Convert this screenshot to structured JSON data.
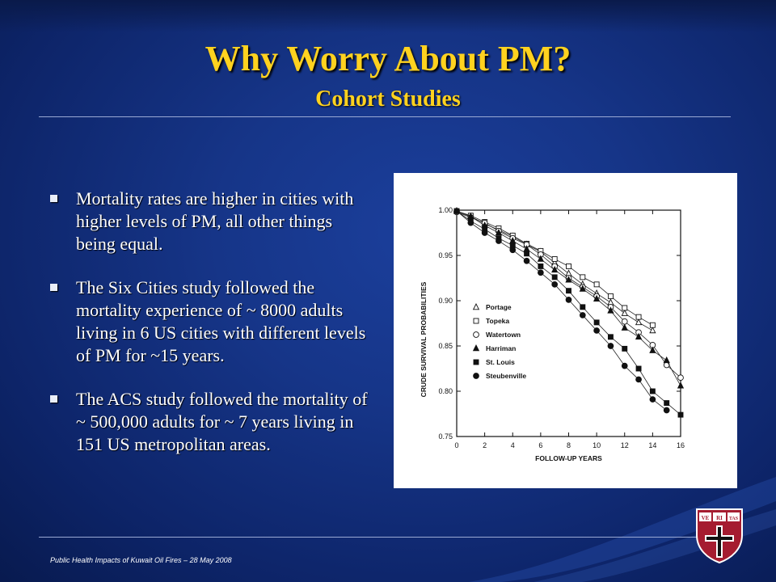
{
  "slide": {
    "title": "Why Worry About PM?",
    "subtitle": "Cohort Studies",
    "footer": "Public Health Impacts of Kuwait Oil Fires – 28 May 2008",
    "logo_text": [
      "VE",
      "RI",
      "TAS"
    ]
  },
  "bullets": [
    "Mortality rates are higher in cities with higher levels of PM, all other things being equal.",
    "The Six Cities study followed the mortality experience of ~ 8000 adults living in 6 US cities with different levels of PM  for ~15 years.",
    "The ACS study followed the mortality of ~ 500,000 adults  for ~ 7 years living in 151 US metropolitan areas."
  ],
  "colors": {
    "title": "#ffd21f",
    "background": "#163588",
    "text": "#ffffff"
  },
  "chart_data": {
    "type": "line",
    "title": "",
    "xlabel": "FOLLOW-UP YEARS",
    "ylabel": "CRUDE SURVIVAL PROBABILITIES",
    "xlim": [
      0,
      16
    ],
    "ylim": [
      0.75,
      1.0
    ],
    "xticks": [
      "0",
      "2",
      "4",
      "6",
      "8",
      "10",
      "12",
      "14",
      "16"
    ],
    "yticks": [
      "1.00",
      "0.95",
      "0.90",
      "0.85",
      "0.80",
      "0.75"
    ],
    "x": [
      0,
      1,
      2,
      3,
      4,
      5,
      6,
      7,
      8,
      9,
      10,
      11,
      12,
      13,
      14,
      15,
      16
    ],
    "legend_position": "left-center",
    "series": [
      {
        "name": "Portage",
        "marker": "triangle-open",
        "values": [
          0.999,
          0.993,
          0.985,
          0.978,
          0.971,
          0.962,
          0.954,
          0.942,
          0.93,
          0.918,
          0.908,
          0.898,
          0.886,
          0.876,
          0.867,
          null,
          null
        ]
      },
      {
        "name": "Topeka",
        "marker": "square-open",
        "values": [
          0.999,
          0.994,
          0.987,
          0.98,
          0.972,
          0.963,
          0.955,
          0.946,
          0.938,
          0.926,
          0.918,
          0.905,
          0.892,
          0.882,
          0.873,
          null,
          null
        ]
      },
      {
        "name": "Watertown",
        "marker": "circle-open",
        "values": [
          0.998,
          0.992,
          0.986,
          0.977,
          0.969,
          0.962,
          0.951,
          0.938,
          0.925,
          0.915,
          0.905,
          0.893,
          0.877,
          0.865,
          0.851,
          0.829,
          0.815
        ]
      },
      {
        "name": "Harriman",
        "marker": "triangle-filled",
        "values": [
          0.999,
          0.993,
          0.983,
          0.975,
          0.966,
          0.957,
          0.946,
          0.934,
          0.923,
          0.913,
          0.902,
          0.889,
          0.87,
          0.86,
          0.845,
          0.834,
          0.806
        ]
      },
      {
        "name": "St. Louis",
        "marker": "square-filled",
        "values": [
          0.999,
          0.988,
          0.979,
          0.969,
          0.961,
          0.952,
          0.938,
          0.926,
          0.911,
          0.893,
          0.876,
          0.86,
          0.847,
          0.825,
          0.8,
          0.787,
          0.774
        ]
      },
      {
        "name": "Steubenville",
        "marker": "circle-filled",
        "values": [
          0.999,
          0.986,
          0.975,
          0.966,
          0.956,
          0.944,
          0.931,
          0.918,
          0.901,
          0.884,
          0.867,
          0.85,
          0.828,
          0.813,
          0.791,
          0.779,
          null
        ]
      }
    ]
  }
}
